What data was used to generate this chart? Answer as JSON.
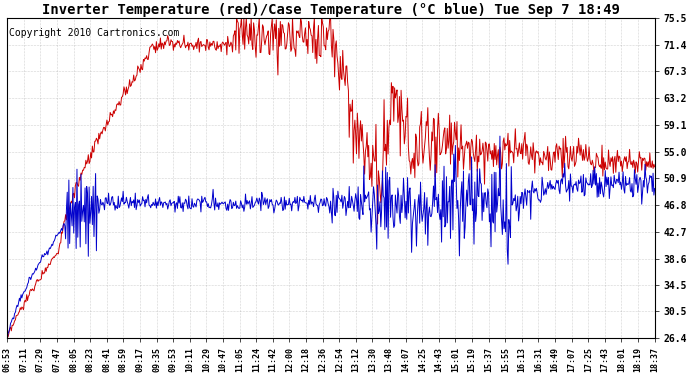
{
  "title": "Inverter Temperature (red)/Case Temperature (°C blue) Tue Sep 7 18:49",
  "copyright_text": "Copyright 2010 Cartronics.com",
  "y_ticks": [
    26.4,
    30.5,
    34.5,
    38.6,
    42.7,
    46.8,
    50.9,
    55.0,
    59.1,
    63.2,
    67.3,
    71.4,
    75.5
  ],
  "ylim": [
    26.4,
    75.5
  ],
  "background_color": "#ffffff",
  "plot_bg_color": "#ffffff",
  "grid_color": "#888888",
  "red_color": "#cc0000",
  "blue_color": "#0000cc",
  "x_labels": [
    "06:53",
    "07:11",
    "07:29",
    "07:47",
    "08:05",
    "08:23",
    "08:41",
    "08:59",
    "09:17",
    "09:35",
    "09:53",
    "10:11",
    "10:29",
    "10:47",
    "11:05",
    "11:24",
    "11:42",
    "12:00",
    "12:18",
    "12:36",
    "12:54",
    "13:12",
    "13:30",
    "13:48",
    "14:07",
    "14:25",
    "14:43",
    "15:01",
    "15:19",
    "15:37",
    "15:55",
    "16:13",
    "16:31",
    "16:49",
    "17:07",
    "17:25",
    "17:43",
    "18:01",
    "18:19",
    "18:37"
  ],
  "title_fontsize": 10,
  "copyright_fontsize": 7
}
